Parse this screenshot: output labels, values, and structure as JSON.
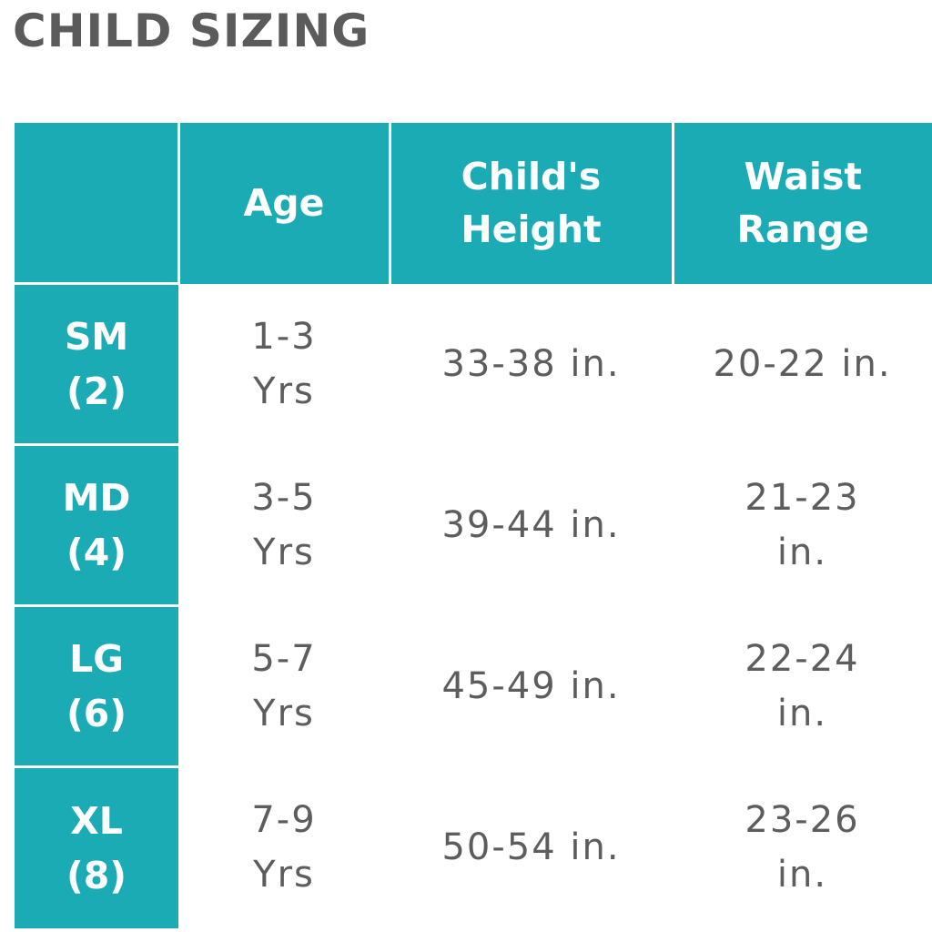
{
  "title": "CHILD SIZING",
  "colors": {
    "header_bg": "#1aabb5",
    "header_text": "#ffffff",
    "title_text": "#5b5b5b",
    "body_text": "#5d5d5d"
  },
  "table": {
    "headers": {
      "size": "",
      "age": "Age",
      "height": "Child's Height",
      "waist": "Waist Range"
    },
    "rows": [
      {
        "size": "SM (2)",
        "age": "1-3 Yrs",
        "height": "33-38 in.",
        "waist": "20-22 in."
      },
      {
        "size": "MD (4)",
        "age": "3-5 Yrs",
        "height": "39-44 in.",
        "waist": "21-23 in."
      },
      {
        "size": "LG (6)",
        "age": "5-7 Yrs",
        "height": "45-49 in.",
        "waist": "22-24 in."
      },
      {
        "size": "XL (8)",
        "age": "7-9 Yrs",
        "height": "50-54 in.",
        "waist": "23-26 in."
      }
    ]
  }
}
